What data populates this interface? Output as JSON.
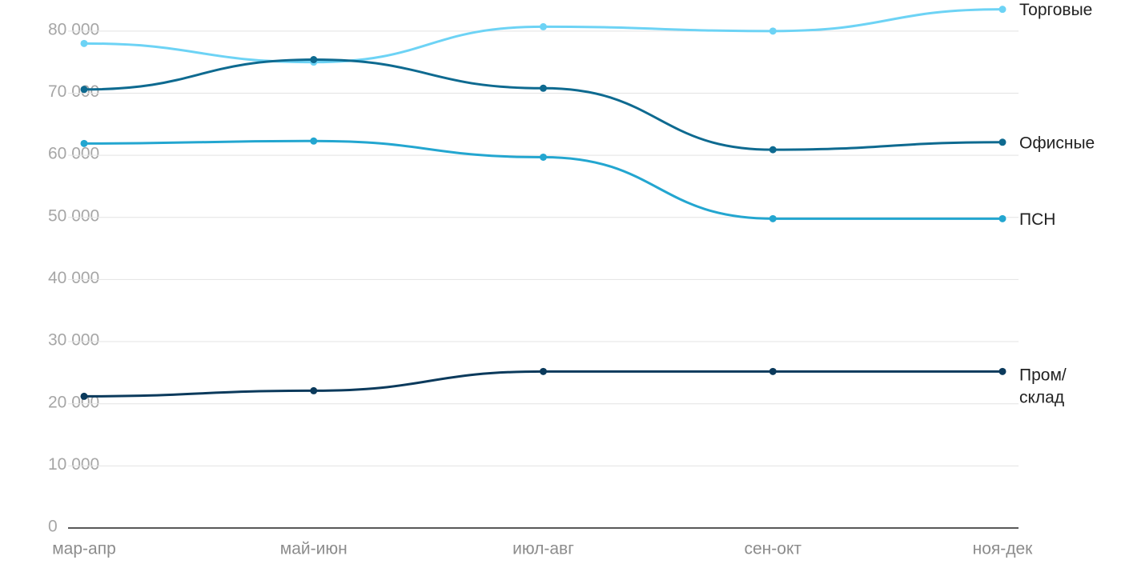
{
  "chart_data": {
    "type": "line",
    "categories": [
      "мар-апр",
      "май-июн",
      "июл-авг",
      "сен-окт",
      "ноя-дек"
    ],
    "ylim": [
      0,
      85000
    ],
    "yticks": [
      0,
      {
        "value": 10000,
        "label": "10 000"
      },
      {
        "value": 20000,
        "label": "20 000"
      },
      {
        "value": 30000,
        "label": "30 000"
      },
      {
        "value": 40000,
        "label": "40 000"
      },
      {
        "value": 50000,
        "label": "50 000"
      },
      {
        "value": 60000,
        "label": "60 000"
      },
      {
        "value": 70000,
        "label": "70 000"
      },
      {
        "value": 80000,
        "label": "80 000"
      }
    ],
    "grid": true,
    "smooth": true,
    "series": [
      {
        "name": "Торговые",
        "color": "#6dd3f5",
        "values": [
          78000,
          75000,
          80700,
          80000,
          83500
        ]
      },
      {
        "name": "Офисные",
        "color": "#0e6a90",
        "values": [
          70600,
          75400,
          70800,
          60900,
          62100
        ]
      },
      {
        "name": "ПСН",
        "color": "#23a6d0",
        "values": [
          61900,
          62300,
          59700,
          49800,
          49800
        ]
      },
      {
        "name": "Пром/склад",
        "color": "#0b3a5c",
        "values": [
          21200,
          22100,
          25200,
          25200,
          25200
        ]
      }
    ]
  }
}
